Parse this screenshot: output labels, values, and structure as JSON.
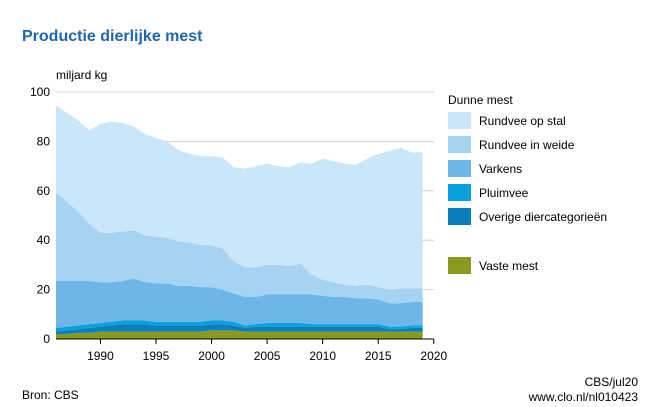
{
  "page": {
    "title": "Productie dierlijke mest",
    "source": "Bron: CBS",
    "credit": "CBS/jul20",
    "url": "www.clo.nl/nl010423"
  },
  "chart_data": {
    "type": "area",
    "stacked": true,
    "title": "Productie dierlijke mest",
    "ylabel": "miljard kg",
    "xlabel": "",
    "xlim": [
      1986,
      2019
    ],
    "ylim": [
      0,
      100
    ],
    "yticks": [
      0,
      20,
      40,
      60,
      80,
      100
    ],
    "xticks": [
      1990,
      1995,
      2000,
      2005,
      2010,
      2015,
      2020
    ],
    "grid": "horizontal",
    "legend_title": "Dunne mest",
    "legend_position": "right",
    "x": [
      1986,
      1987,
      1988,
      1989,
      1990,
      1991,
      1992,
      1993,
      1994,
      1995,
      1996,
      1997,
      1998,
      1999,
      2000,
      2001,
      2002,
      2003,
      2004,
      2005,
      2006,
      2007,
      2008,
      2009,
      2010,
      2011,
      2012,
      2013,
      2014,
      2015,
      2016,
      2017,
      2018,
      2019
    ],
    "series": [
      {
        "name": "Vaste mest",
        "color": "#8a9a1e",
        "values": [
          2,
          2,
          2.5,
          2.5,
          3,
          3,
          3,
          3,
          3,
          3,
          3,
          3,
          3,
          3,
          3.5,
          3.5,
          3.5,
          3,
          3,
          3,
          3,
          3,
          3,
          3,
          3,
          3,
          3,
          3,
          3,
          3,
          3,
          3,
          3,
          3
        ]
      },
      {
        "name": "Overige diercategorieën",
        "color": "#0a7fc0",
        "values": [
          1,
          1.5,
          1.5,
          2,
          2,
          2.5,
          3,
          3,
          3,
          2.5,
          2.5,
          2.5,
          2.5,
          2.5,
          2.5,
          2.5,
          2,
          1.5,
          2,
          2,
          2,
          2,
          2,
          2,
          2,
          2,
          2,
          2,
          2,
          2,
          1,
          1,
          1.5,
          1.5
        ]
      },
      {
        "name": "Pluimvee",
        "color": "#0aa0e0",
        "values": [
          1.5,
          1.5,
          1.5,
          1.5,
          1.5,
          1.5,
          1.5,
          1.5,
          1.5,
          1.5,
          1.5,
          1.5,
          1.5,
          1.5,
          1.5,
          1.5,
          1.5,
          1,
          1,
          1.5,
          1.5,
          1.5,
          1.5,
          1,
          1,
          1,
          1,
          1,
          1,
          1,
          1,
          1,
          1,
          1
        ]
      },
      {
        "name": "Varkens",
        "color": "#6db7e8",
        "values": [
          19,
          18.5,
          18,
          17.5,
          16.5,
          16,
          16,
          17,
          15.5,
          15.5,
          15.5,
          14.5,
          14.5,
          14,
          13.5,
          12.5,
          11.5,
          11.5,
          11,
          11.5,
          11.5,
          11.5,
          11.5,
          12,
          11.5,
          11,
          11,
          10.5,
          10.5,
          10,
          9.5,
          9.5,
          9.5,
          9.5
        ]
      },
      {
        "name": "Rundvee in weide",
        "color": "#a6d3f2",
        "values": [
          36,
          32,
          28,
          23,
          20,
          20,
          20,
          19.5,
          19,
          19,
          18.5,
          18,
          17.5,
          17,
          17,
          16.5,
          13,
          12,
          12,
          12,
          12,
          11.5,
          12.5,
          8,
          6.5,
          6,
          5,
          5,
          5.5,
          5,
          5.5,
          6,
          5.5,
          5.5
        ]
      },
      {
        "name": "Rundvee op stal",
        "color": "#cae6f9",
        "values": [
          35,
          36,
          37,
          38,
          44,
          45,
          44,
          42,
          41,
          40,
          39,
          37,
          36,
          36,
          36,
          37,
          38,
          40,
          41,
          41,
          40,
          40,
          41,
          45,
          49,
          49,
          49,
          49,
          51,
          54,
          56,
          57,
          55,
          55
        ]
      }
    ]
  }
}
